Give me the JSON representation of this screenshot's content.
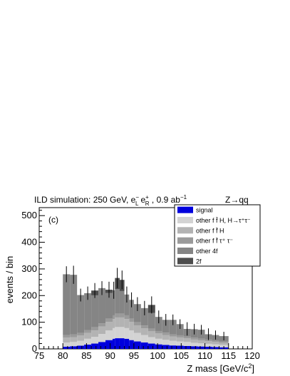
{
  "chart_data": {
    "type": "bar",
    "stacked": true,
    "title_left": "ILD simulation: 250 GeV, e",
    "title_sub_L": "L",
    "title_sub_R": "R",
    "title_sup_minus": "−",
    "title_sup_plus": "+",
    "title_mid": " , 0.9 ab",
    "title_exp": "−1",
    "title_right": "Z→qq",
    "panel_label": "(c)",
    "xlabel": "Z mass [GeV/c",
    "xlabel_exp": "2",
    "xlabel_end": "]",
    "ylabel": "events / bin",
    "xlim": [
      75,
      120
    ],
    "ylim": [
      0,
      530
    ],
    "xticks": [
      75,
      80,
      85,
      90,
      95,
      100,
      105,
      110,
      115,
      120
    ],
    "yticks": [
      0,
      100,
      200,
      300,
      400,
      500
    ],
    "bin_edges": [
      80,
      81.5,
      83,
      84.5,
      86,
      87.5,
      89,
      90.5,
      91,
      92,
      93,
      94,
      95,
      96.5,
      98,
      99.5,
      101,
      102.5,
      104,
      105.5,
      107,
      108.5,
      110,
      111.5,
      113,
      115
    ],
    "series": [
      {
        "name": "signal",
        "color": "#0000dd",
        "values": [
          8,
          10,
          12,
          16,
          20,
          26,
          33,
          38,
          40,
          40,
          38,
          33,
          28,
          24,
          20,
          17,
          15,
          13,
          12,
          11,
          10,
          9,
          8,
          7,
          6
        ]
      },
      {
        "name": "other f f̄ H, H→τ⁺τ⁻",
        "color": "#d3d3d3",
        "values": [
          16,
          16,
          18,
          22,
          25,
          30,
          36,
          40,
          42,
          42,
          40,
          36,
          32,
          28,
          24,
          21,
          19,
          17,
          16,
          15,
          13,
          12,
          11,
          10,
          9
        ]
      },
      {
        "name": "other f f̄ H",
        "color": "#b3b3b3",
        "values": [
          18,
          18,
          20,
          22,
          24,
          28,
          32,
          34,
          36,
          36,
          34,
          32,
          28,
          25,
          22,
          20,
          18,
          16,
          15,
          14,
          12,
          11,
          10,
          9,
          8
        ]
      },
      {
        "name": "other f f̄ τ⁺ τ⁻",
        "color": "#9a9a9a",
        "values": [
          10,
          10,
          10,
          11,
          12,
          12,
          13,
          14,
          14,
          14,
          14,
          13,
          12,
          11,
          10,
          9,
          9,
          8,
          8,
          7,
          7,
          6,
          6,
          5,
          5
        ]
      },
      {
        "name": "other 4f",
        "color": "#858585",
        "values": [
          228,
          224,
          142,
          138,
          120,
          132,
          96,
          94,
          92,
          85,
          78,
          70,
          68,
          65,
          59,
          53,
          48,
          55,
          42,
          28,
          32,
          34,
          20,
          21,
          20
        ]
      },
      {
        "name": "2f",
        "color": "#4d4d4d",
        "values": [
          0,
          0,
          0,
          0,
          18,
          0,
          12,
          0,
          42,
          42,
          0,
          0,
          0,
          0,
          30,
          0,
          0,
          0,
          0,
          0,
          0,
          0,
          0,
          0,
          0
        ]
      }
    ],
    "errors": [
      30,
      34,
      24,
      25,
      28,
      26,
      30,
      32,
      38,
      35,
      30,
      28,
      26,
      27,
      32,
      24,
      22,
      20,
      18,
      25,
      20,
      18,
      22,
      17,
      16
    ],
    "legend_position": "top-right",
    "legend_labels": [
      "signal",
      "other f f̄ H, H→τ⁺τ⁻",
      "other f f̄ H",
      "other f f̄ τ⁺ τ⁻",
      "other 4f",
      "2f"
    ]
  }
}
